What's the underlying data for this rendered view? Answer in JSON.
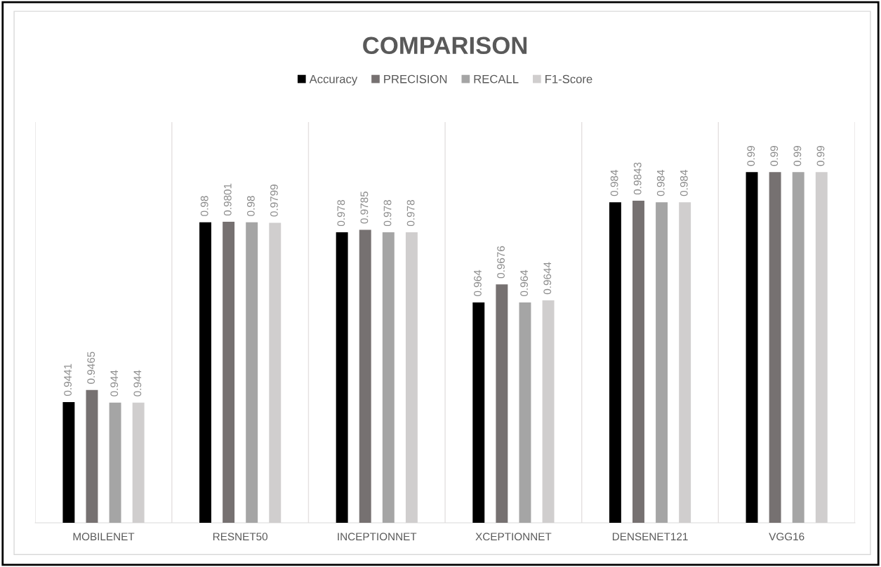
{
  "chart_data": {
    "type": "bar",
    "title": "COMPARISON",
    "categories": [
      "MOBILENET",
      "RESNET50",
      "INCEPTIONNET",
      "XCEPTIONNET",
      "DENSENET121",
      "VGG16"
    ],
    "series": [
      {
        "name": "Accuracy",
        "color": "#000000",
        "values": [
          0.9441,
          0.98,
          0.978,
          0.964,
          0.984,
          0.99
        ]
      },
      {
        "name": "PRECISION",
        "color": "#767171",
        "values": [
          0.9465,
          0.9801,
          0.9785,
          0.9676,
          0.9843,
          0.99
        ]
      },
      {
        "name": "RECALL",
        "color": "#a5a5a5",
        "values": [
          0.944,
          0.98,
          0.978,
          0.964,
          0.984,
          0.99
        ]
      },
      {
        "name": "F1-Score",
        "color": "#d0cece",
        "values": [
          0.944,
          0.9799,
          0.978,
          0.9644,
          0.984,
          0.99
        ]
      }
    ],
    "ylim": [
      0.92,
      1.0
    ],
    "tick_labels": "x",
    "data_labels": true,
    "grid": "x",
    "legend": "top"
  }
}
